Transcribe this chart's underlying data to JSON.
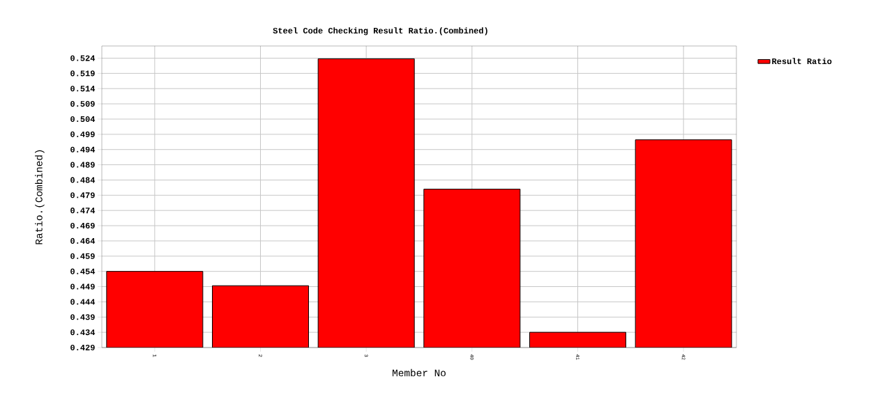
{
  "chart_data": {
    "type": "bar",
    "title": "Steel Code Checking Result Ratio.(Combined)",
    "xlabel": "Member No",
    "ylabel": "Ratio.(Combined)",
    "categories": [
      "1",
      "2",
      "3",
      "40",
      "41",
      "42"
    ],
    "series": [
      {
        "name": "Result Ratio",
        "color": "#ff0000",
        "values": [
          0.454,
          0.4493,
          0.5238,
          0.481,
          0.434,
          0.4972
        ]
      }
    ],
    "ylim": [
      0.429,
      0.528
    ],
    "yticks": [
      0.429,
      0.434,
      0.439,
      0.444,
      0.449,
      0.454,
      0.459,
      0.464,
      0.469,
      0.474,
      0.479,
      0.484,
      0.489,
      0.494,
      0.499,
      0.504,
      0.509,
      0.514,
      0.519,
      0.524
    ],
    "grid": true,
    "legend": "top right"
  }
}
